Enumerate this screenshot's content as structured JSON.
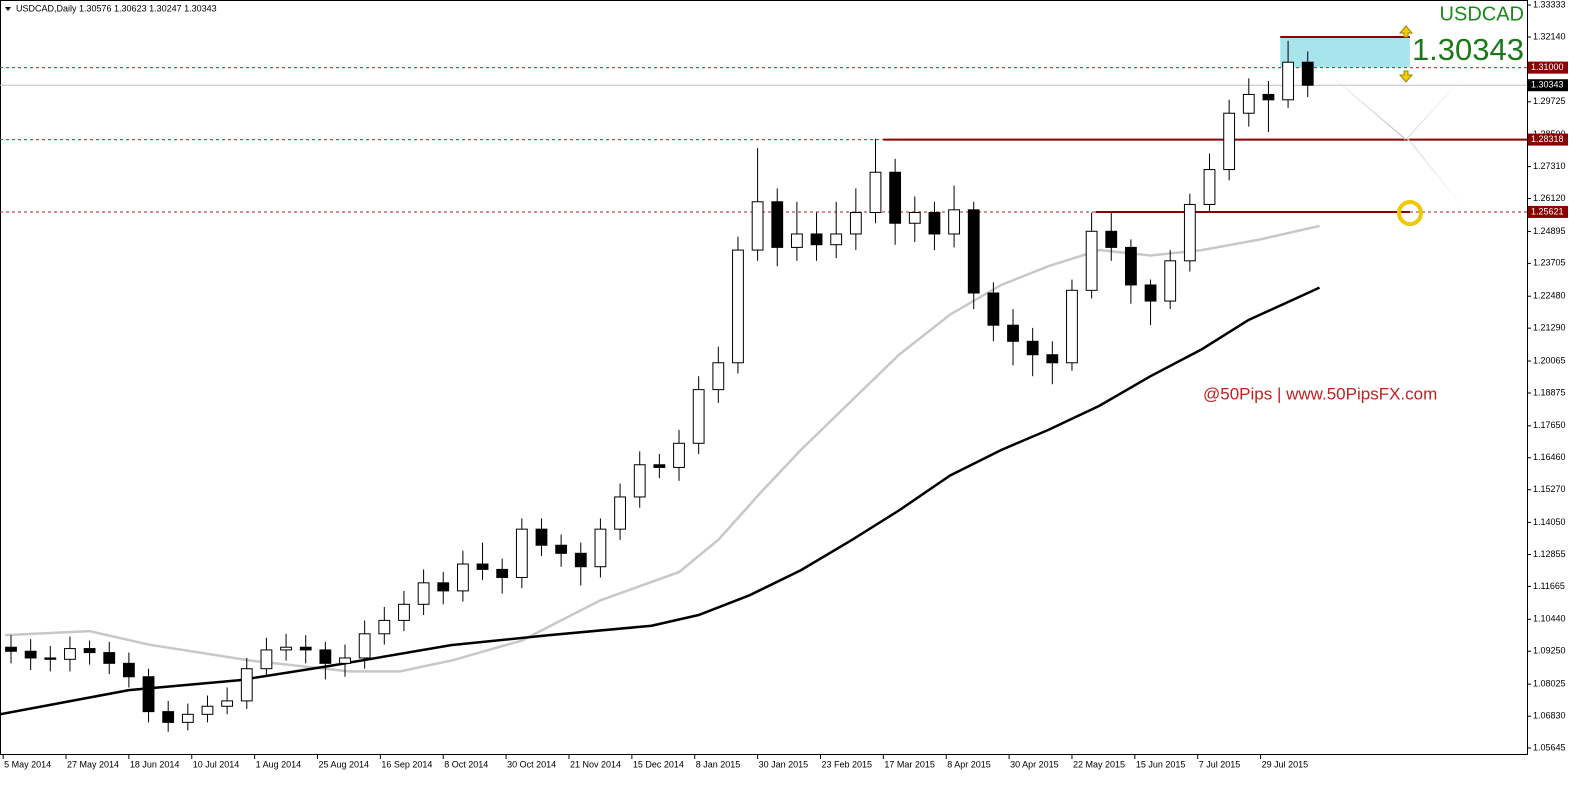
{
  "chart_data": {
    "type": "candlestick",
    "header": "USDCAD,Daily  1.30576 1.30623 1.30247 1.30343",
    "symbol": "USDCAD",
    "price": 1.30343,
    "watermark": "@50Pips | www.50PipsFX.com",
    "xlim": [
      -0.8,
      387.8
    ],
    "ylim": [
      1.05384,
      1.33519
    ],
    "xticks": [
      {
        "value": 0,
        "label": "5 May 2014"
      },
      {
        "value": 16,
        "label": "27 May 2014"
      },
      {
        "value": 32,
        "label": "18 Jun 2014"
      },
      {
        "value": 48,
        "label": "10 Jul 2014"
      },
      {
        "value": 64,
        "label": "1 Aug 2014"
      },
      {
        "value": 80,
        "label": "25 Aug 2014"
      },
      {
        "value": 96,
        "label": "16 Sep 2014"
      },
      {
        "value": 112,
        "label": "8 Oct 2014"
      },
      {
        "value": 128,
        "label": "30 Oct 2014"
      },
      {
        "value": 144,
        "label": "21 Nov 2014"
      },
      {
        "value": 160,
        "label": "15 Dec 2014"
      },
      {
        "value": 176,
        "label": "8 Jan 2015"
      },
      {
        "value": 192,
        "label": "30 Jan 2015"
      },
      {
        "value": 208,
        "label": "23 Feb 2015"
      },
      {
        "value": 224,
        "label": "17 Mar 2015"
      },
      {
        "value": 240,
        "label": "8 Apr 2015"
      },
      {
        "value": 256,
        "label": "30 Apr 2015"
      },
      {
        "value": 272,
        "label": "22 May 2015"
      },
      {
        "value": 288,
        "label": "15 Jun 2015"
      },
      {
        "value": 304,
        "label": "7 Jul 2015"
      },
      {
        "value": 320,
        "label": "29 Jul 2015"
      }
    ],
    "yticks": [
      1.33333,
      {
        "value": 1.3214,
        "label": "1.32140"
      },
      1.29725,
      {
        "value": 1.285,
        "label": "1.28500"
      },
      {
        "value": 1.2731,
        "label": "1.27310"
      },
      {
        "value": 1.2612,
        "label": "1.26120"
      },
      1.24895,
      1.23705,
      {
        "value": 1.2248,
        "label": "1.22480"
      },
      {
        "value": 1.2129,
        "label": "1.21290"
      },
      1.20065,
      1.18875,
      {
        "value": 1.1765,
        "label": "1.17650"
      },
      {
        "value": 1.1646,
        "label": "1.16460"
      },
      {
        "value": 1.1527,
        "label": "1.15270"
      },
      {
        "value": 1.1405,
        "label": "1.14050"
      },
      1.12855,
      1.11665,
      {
        "value": 1.1044,
        "label": "1.10440"
      },
      {
        "value": 1.0925,
        "label": "1.09250"
      },
      1.08025,
      {
        "value": 1.0683,
        "label": "1.06830"
      },
      1.05645
    ],
    "x": [
      2,
      7,
      12,
      17,
      22,
      27,
      32,
      37,
      42,
      47,
      52,
      57,
      62,
      67,
      72,
      77,
      82,
      87,
      92,
      97,
      102,
      107,
      112,
      117,
      122,
      127,
      132,
      137,
      142,
      147,
      152,
      157,
      162,
      167,
      172,
      177,
      182,
      187,
      192,
      197,
      202,
      207,
      212,
      217,
      222,
      227,
      232,
      237,
      242,
      247,
      252,
      257,
      262,
      267,
      272,
      277,
      282,
      287,
      292,
      297,
      302,
      307,
      312,
      317,
      322,
      327,
      332
    ],
    "open": [
      1.094,
      1.0925,
      1.09,
      1.0895,
      1.0935,
      1.092,
      1.088,
      1.083,
      1.07,
      1.066,
      1.069,
      1.072,
      1.074,
      1.086,
      1.093,
      1.094,
      1.093,
      1.088,
      1.09,
      1.099,
      1.104,
      1.11,
      1.118,
      1.115,
      1.125,
      1.123,
      1.12,
      1.138,
      1.132,
      1.129,
      1.124,
      1.138,
      1.15,
      1.162,
      1.161,
      1.17,
      1.19,
      1.2,
      1.242,
      1.26,
      1.243,
      1.248,
      1.244,
      1.248,
      1.256,
      1.271,
      1.252,
      1.256,
      1.248,
      1.257,
      1.226,
      1.214,
      1.208,
      1.203,
      1.2,
      1.227,
      1.249,
      1.243,
      1.229,
      1.223,
      1.238,
      1.259,
      1.272,
      1.293,
      1.3,
      1.298,
      1.312
    ],
    "high": [
      1.0985,
      1.097,
      1.0945,
      1.098,
      1.0965,
      1.096,
      1.092,
      1.086,
      1.074,
      1.073,
      1.076,
      1.079,
      1.09,
      1.0975,
      1.099,
      1.0985,
      1.096,
      1.095,
      1.104,
      1.109,
      1.115,
      1.123,
      1.122,
      1.13,
      1.133,
      1.127,
      1.142,
      1.142,
      1.136,
      1.133,
      1.142,
      1.155,
      1.167,
      1.166,
      1.175,
      1.195,
      1.206,
      1.247,
      1.28,
      1.265,
      1.26,
      1.256,
      1.26,
      1.265,
      1.2835,
      1.276,
      1.262,
      1.26,
      1.266,
      1.26,
      1.23,
      1.22,
      1.213,
      1.208,
      1.231,
      1.256,
      1.256,
      1.246,
      1.231,
      1.242,
      1.263,
      1.278,
      1.298,
      1.306,
      1.305,
      1.32,
      1.316
    ],
    "low": [
      1.088,
      1.0855,
      1.085,
      1.085,
      1.0875,
      1.084,
      1.079,
      1.066,
      1.0625,
      1.063,
      1.066,
      1.069,
      1.071,
      1.083,
      1.089,
      1.088,
      1.082,
      1.083,
      1.086,
      1.095,
      1.1,
      1.106,
      1.11,
      1.111,
      1.119,
      1.114,
      1.116,
      1.128,
      1.124,
      1.117,
      1.12,
      1.134,
      1.146,
      1.157,
      1.156,
      1.166,
      1.185,
      1.196,
      1.238,
      1.236,
      1.238,
      1.238,
      1.239,
      1.242,
      1.252,
      1.244,
      1.245,
      1.242,
      1.243,
      1.22,
      1.208,
      1.199,
      1.195,
      1.192,
      1.197,
      1.224,
      1.238,
      1.222,
      1.214,
      1.22,
      1.234,
      1.256,
      1.268,
      1.288,
      1.286,
      1.295,
      1.299
    ],
    "close": [
      1.0925,
      1.09,
      1.0895,
      1.0935,
      1.092,
      1.088,
      1.083,
      1.07,
      1.066,
      1.069,
      1.072,
      1.074,
      1.086,
      1.093,
      1.094,
      1.093,
      1.088,
      1.09,
      1.099,
      1.104,
      1.11,
      1.118,
      1.115,
      1.125,
      1.123,
      1.12,
      1.138,
      1.132,
      1.129,
      1.124,
      1.138,
      1.15,
      1.162,
      1.161,
      1.17,
      1.19,
      1.2,
      1.242,
      1.26,
      1.243,
      1.248,
      1.244,
      1.248,
      1.256,
      1.271,
      1.252,
      1.256,
      1.248,
      1.257,
      1.226,
      1.214,
      1.208,
      1.203,
      1.2,
      1.227,
      1.249,
      1.243,
      1.229,
      1.223,
      1.238,
      1.259,
      1.272,
      1.293,
      1.3,
      1.298,
      1.312,
      1.30343
    ],
    "moving_averages": [
      {
        "color": "#c8c8c8",
        "x": [
          0.5,
          22,
          37,
          63,
          88,
          101,
          114,
          132,
          152,
          172,
          182,
          193,
          203,
          216,
          228,
          241,
          254,
          266,
          279,
          292,
          305,
          320,
          335
        ],
        "values": [
          1.0985,
          1.1,
          1.095,
          1.089,
          1.085,
          1.085,
          1.089,
          1.0965,
          1.1115,
          1.122,
          1.134,
          1.152,
          1.1675,
          1.186,
          1.203,
          1.218,
          1.229,
          1.236,
          1.242,
          1.24,
          1.242,
          1.246,
          1.251
        ]
      },
      {
        "color": "#000000",
        "x": [
          -0.8,
          32,
          60,
          83,
          114,
          139,
          165,
          177,
          190,
          203,
          216,
          228,
          241,
          254,
          266,
          279,
          292,
          305,
          317,
          335
        ],
        "values": [
          1.069,
          1.078,
          1.0817,
          1.087,
          1.0948,
          1.0985,
          1.102,
          1.106,
          1.1134,
          1.1227,
          1.134,
          1.145,
          1.158,
          1.1675,
          1.175,
          1.184,
          1.195,
          1.205,
          1.216,
          1.228
        ]
      }
    ],
    "levels": [
      {
        "value": 1.31,
        "label": "1.31000"
      },
      {
        "value": 1.28318,
        "label": "1.28318"
      },
      {
        "value": 1.25621,
        "label": "1.25621"
      }
    ],
    "level_color": "#b22222",
    "trendlines": [
      {
        "x": [
          224,
          387.8
        ],
        "value": 1.28318
      },
      {
        "x": [
          278,
          358
        ],
        "value": 1.25621
      }
    ],
    "trendline_color": "#8b0000",
    "zone": {
      "x": [
        325,
        358
      ],
      "y": [
        1.31,
        1.3214
      ],
      "color": "#a8e4ec"
    }
  }
}
